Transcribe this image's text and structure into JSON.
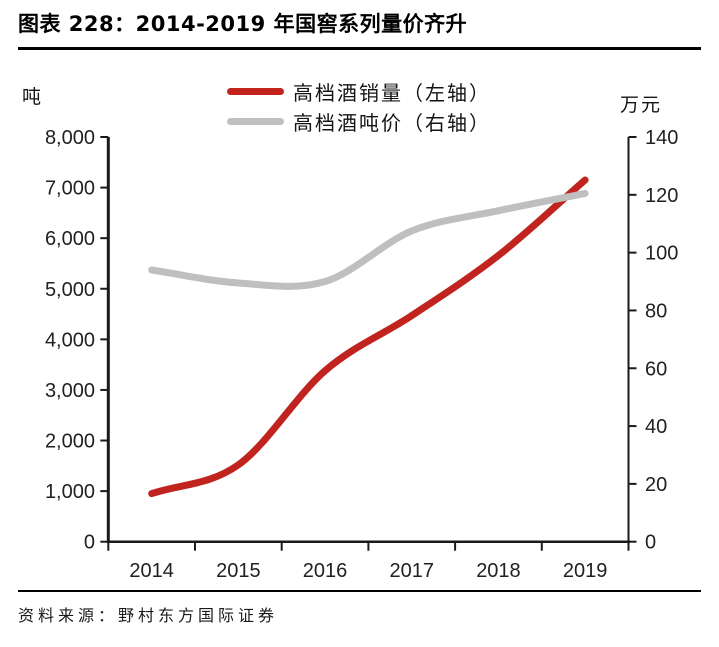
{
  "header": {
    "title": "图表 228：2014-2019 年国窖系列量价齐升"
  },
  "legend": [
    {
      "label": "高档酒销量（左轴）",
      "color": "#C1241E"
    },
    {
      "label": "高档酒吨价（右轴）",
      "color": "#BFBFBF"
    }
  ],
  "axes": {
    "left_unit": "吨",
    "right_unit": "万元"
  },
  "footer": {
    "source": "资料来源：野村东方国际证券"
  },
  "chart_data": {
    "type": "line",
    "title": "2014-2019 年国窖系列量价齐升",
    "categories": [
      "2014",
      "2015",
      "2016",
      "2017",
      "2018",
      "2019"
    ],
    "series": [
      {
        "name": "高档酒销量（左轴）",
        "axis": "left",
        "color": "#C1241E",
        "values": [
          950,
          1520,
          3380,
          4470,
          5660,
          7150
        ]
      },
      {
        "name": "高档酒吨价（右轴）",
        "axis": "right",
        "color": "#BFBFBF",
        "values": [
          94,
          89.5,
          90,
          107.5,
          114.5,
          120.5
        ]
      }
    ],
    "left_axis": {
      "label": "吨",
      "min": 0,
      "max": 8000,
      "tick_step": 1000,
      "tick_labels": [
        "0",
        "1,000",
        "2,000",
        "3,000",
        "4,000",
        "5,000",
        "6,000",
        "7,000",
        "8,000"
      ]
    },
    "right_axis": {
      "label": "万元",
      "min": 0,
      "max": 140,
      "tick_step": 20,
      "tick_labels": [
        "0",
        "20",
        "40",
        "60",
        "80",
        "100",
        "120",
        "140"
      ]
    },
    "grid": false,
    "legend_position": "top",
    "line_style": "smooth"
  }
}
